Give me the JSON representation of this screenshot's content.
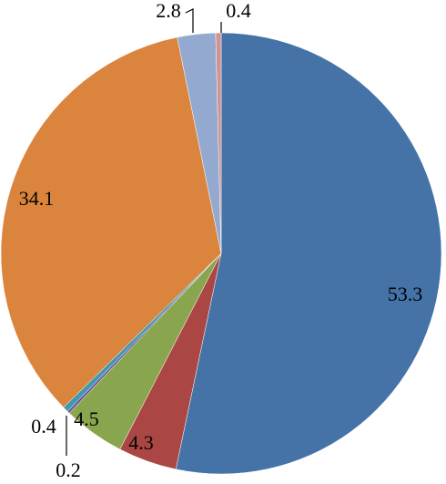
{
  "chart_data": {
    "type": "pie",
    "values": [
      53.3,
      4.3,
      4.5,
      0.2,
      0.4,
      34.1,
      2.8,
      0.4
    ],
    "colors": [
      "#4572a7",
      "#aa4643",
      "#89a54e",
      "#71588f",
      "#4198af",
      "#db843d",
      "#93a9cf",
      "#d19392"
    ],
    "start_angle": 0,
    "direction": "clockwise"
  }
}
